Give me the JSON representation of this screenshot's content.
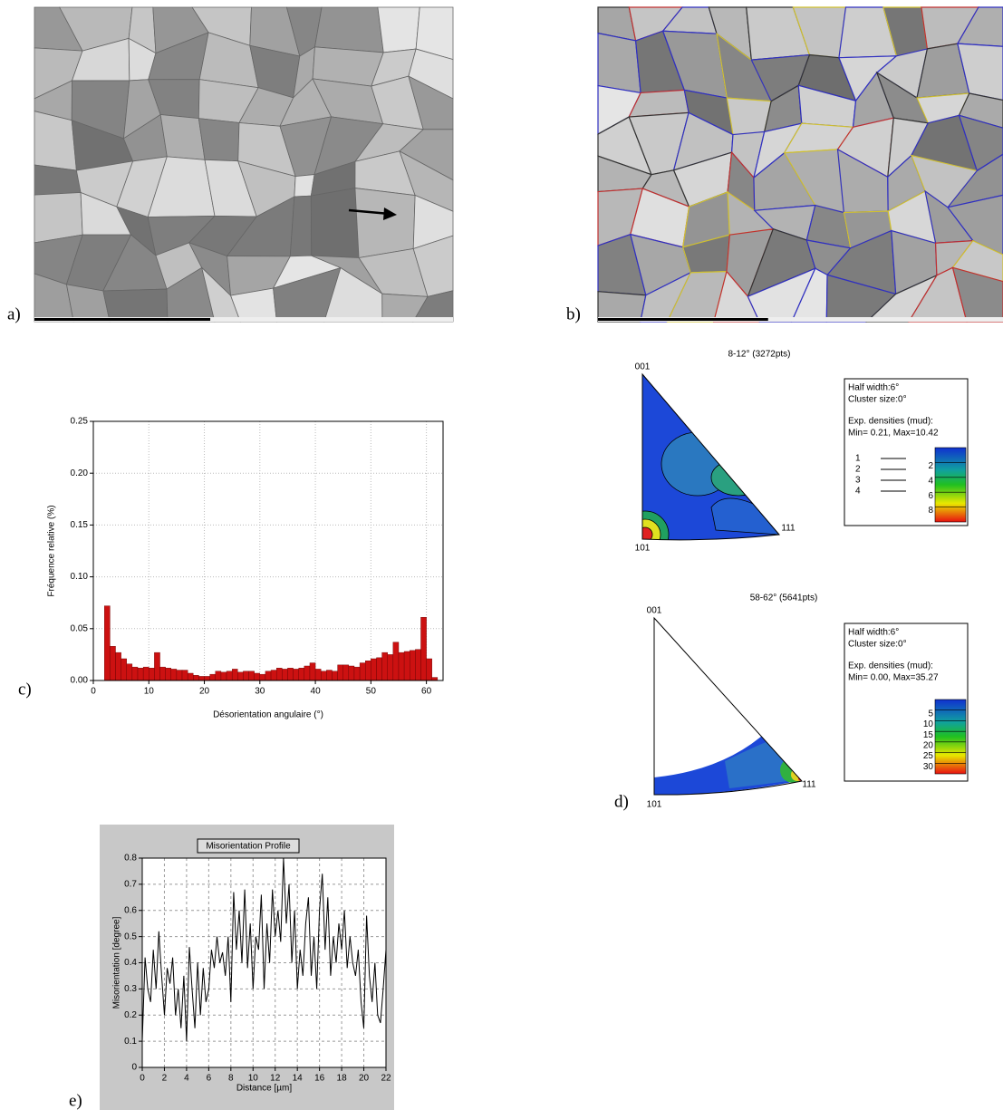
{
  "panel_labels": [
    "a)",
    "b)",
    "c)",
    "d)",
    "e)"
  ],
  "chart_data": [
    {
      "type": "histogram",
      "x_label": "Désorientation angulaire (°)",
      "y_label": "Fréquence relative (%)",
      "color": "#cc1111",
      "grid": true,
      "bins": [
        2,
        3,
        4,
        5,
        6,
        7,
        8,
        9,
        10,
        11,
        12,
        13,
        14,
        15,
        16,
        17,
        18,
        19,
        20,
        21,
        22,
        23,
        24,
        25,
        26,
        27,
        28,
        29,
        30,
        31,
        32,
        33,
        34,
        35,
        36,
        37,
        38,
        39,
        40,
        41,
        42,
        43,
        44,
        45,
        46,
        47,
        48,
        49,
        50,
        51,
        52,
        53,
        54,
        55,
        56,
        57,
        58,
        59,
        60,
        61,
        62
      ],
      "values": [
        0.072,
        0.033,
        0.027,
        0.021,
        0.016,
        0.013,
        0.012,
        0.013,
        0.012,
        0.027,
        0.013,
        0.012,
        0.011,
        0.01,
        0.01,
        0.007,
        0.005,
        0.004,
        0.004,
        0.006,
        0.009,
        0.008,
        0.009,
        0.011,
        0.008,
        0.009,
        0.009,
        0.007,
        0.006,
        0.009,
        0.01,
        0.012,
        0.011,
        0.012,
        0.011,
        0.012,
        0.014,
        0.017,
        0.011,
        0.009,
        0.01,
        0.009,
        0.015,
        0.015,
        0.014,
        0.013,
        0.017,
        0.019,
        0.021,
        0.022,
        0.027,
        0.025,
        0.037,
        0.027,
        0.028,
        0.029,
        0.03,
        0.061,
        0.021,
        0.003
      ],
      "xlim": [
        0,
        63
      ],
      "xticks": [
        0,
        10,
        20,
        30,
        40,
        50,
        60
      ],
      "ylim": [
        0,
        0.25
      ],
      "yticks": [
        {
          "value": 0,
          "label": "0.00"
        },
        {
          "value": 0.05,
          "label": "0.05"
        },
        {
          "value": 0.1,
          "label": "0.10"
        },
        {
          "value": 0.15,
          "label": "0.15"
        },
        {
          "value": 0.2,
          "label": "0.20"
        },
        {
          "value": 0.25,
          "label": "0.25"
        }
      ]
    },
    {
      "type": "line",
      "title": "Misorientation Profile",
      "x_label": "Distance [µm]",
      "y_label": "Misorientation [degree]",
      "color": "#000000",
      "grid": true,
      "x": [
        0,
        0.25,
        0.5,
        0.75,
        1,
        1.25,
        1.5,
        1.75,
        2,
        2.25,
        2.5,
        2.75,
        3,
        3.25,
        3.5,
        3.75,
        4,
        4.25,
        4.5,
        4.75,
        5,
        5.25,
        5.5,
        5.75,
        6,
        6.25,
        6.5,
        6.75,
        7,
        7.25,
        7.5,
        7.75,
        8,
        8.25,
        8.5,
        8.75,
        9,
        9.25,
        9.5,
        9.75,
        10,
        10.25,
        10.5,
        10.75,
        11,
        11.25,
        11.5,
        11.75,
        12,
        12.25,
        12.5,
        12.75,
        13,
        13.25,
        13.5,
        13.75,
        14,
        14.25,
        14.5,
        14.75,
        15,
        15.25,
        15.5,
        15.75,
        16,
        16.25,
        16.5,
        16.75,
        17,
        17.25,
        17.5,
        17.75,
        18,
        18.25,
        18.5,
        18.75,
        19,
        19.25,
        19.5,
        19.75,
        20,
        20.25,
        20.5,
        20.75,
        21,
        21.25,
        21.5,
        21.75,
        22
      ],
      "values": [
        0.1,
        0.42,
        0.3,
        0.25,
        0.45,
        0.3,
        0.52,
        0.35,
        0.2,
        0.38,
        0.32,
        0.42,
        0.2,
        0.3,
        0.15,
        0.35,
        0.1,
        0.46,
        0.3,
        0.15,
        0.4,
        0.2,
        0.38,
        0.25,
        0.3,
        0.45,
        0.38,
        0.5,
        0.4,
        0.44,
        0.35,
        0.5,
        0.25,
        0.67,
        0.45,
        0.6,
        0.4,
        0.68,
        0.38,
        0.55,
        0.3,
        0.5,
        0.45,
        0.66,
        0.3,
        0.55,
        0.4,
        0.68,
        0.5,
        0.6,
        0.48,
        0.8,
        0.55,
        0.7,
        0.4,
        0.6,
        0.3,
        0.45,
        0.35,
        0.55,
        0.65,
        0.35,
        0.5,
        0.3,
        0.6,
        0.74,
        0.45,
        0.65,
        0.35,
        0.5,
        0.4,
        0.55,
        0.45,
        0.6,
        0.38,
        0.5,
        0.4,
        0.35,
        0.45,
        0.25,
        0.15,
        0.58,
        0.35,
        0.25,
        0.4,
        0.2,
        0.17,
        0.3,
        0.45
      ],
      "xlim": [
        0,
        22
      ],
      "xticks": [
        0,
        2,
        4,
        6,
        8,
        10,
        12,
        14,
        16,
        18,
        20,
        22
      ],
      "ylim": [
        0,
        0.8
      ],
      "yticks": [
        0,
        0.1,
        0.2,
        0.3,
        0.4,
        0.5,
        0.6,
        0.7,
        0.8
      ]
    }
  ],
  "pole_figures": [
    {
      "title": "8-12° (3272pts)",
      "poles": [
        "001",
        "101",
        "111"
      ],
      "half_width": "Half width:6°",
      "cluster_size": "Cluster size:0°",
      "densities_label": "Exp. densities (mud):",
      "min_max": "Min= 0.21, Max=10.42",
      "contours": [
        1,
        2,
        3,
        4
      ],
      "colorbar": [
        2,
        4,
        6,
        8
      ]
    },
    {
      "title": "58-62° (5641pts)",
      "poles": [
        "001",
        "101",
        "111"
      ],
      "half_width": "Half width:6°",
      "cluster_size": "Cluster size:0°",
      "densities_label": "Exp. densities (mud):",
      "min_max": "Min= 0.00, Max=35.27",
      "colorbar": [
        5,
        10,
        15,
        20,
        25,
        30
      ]
    }
  ]
}
